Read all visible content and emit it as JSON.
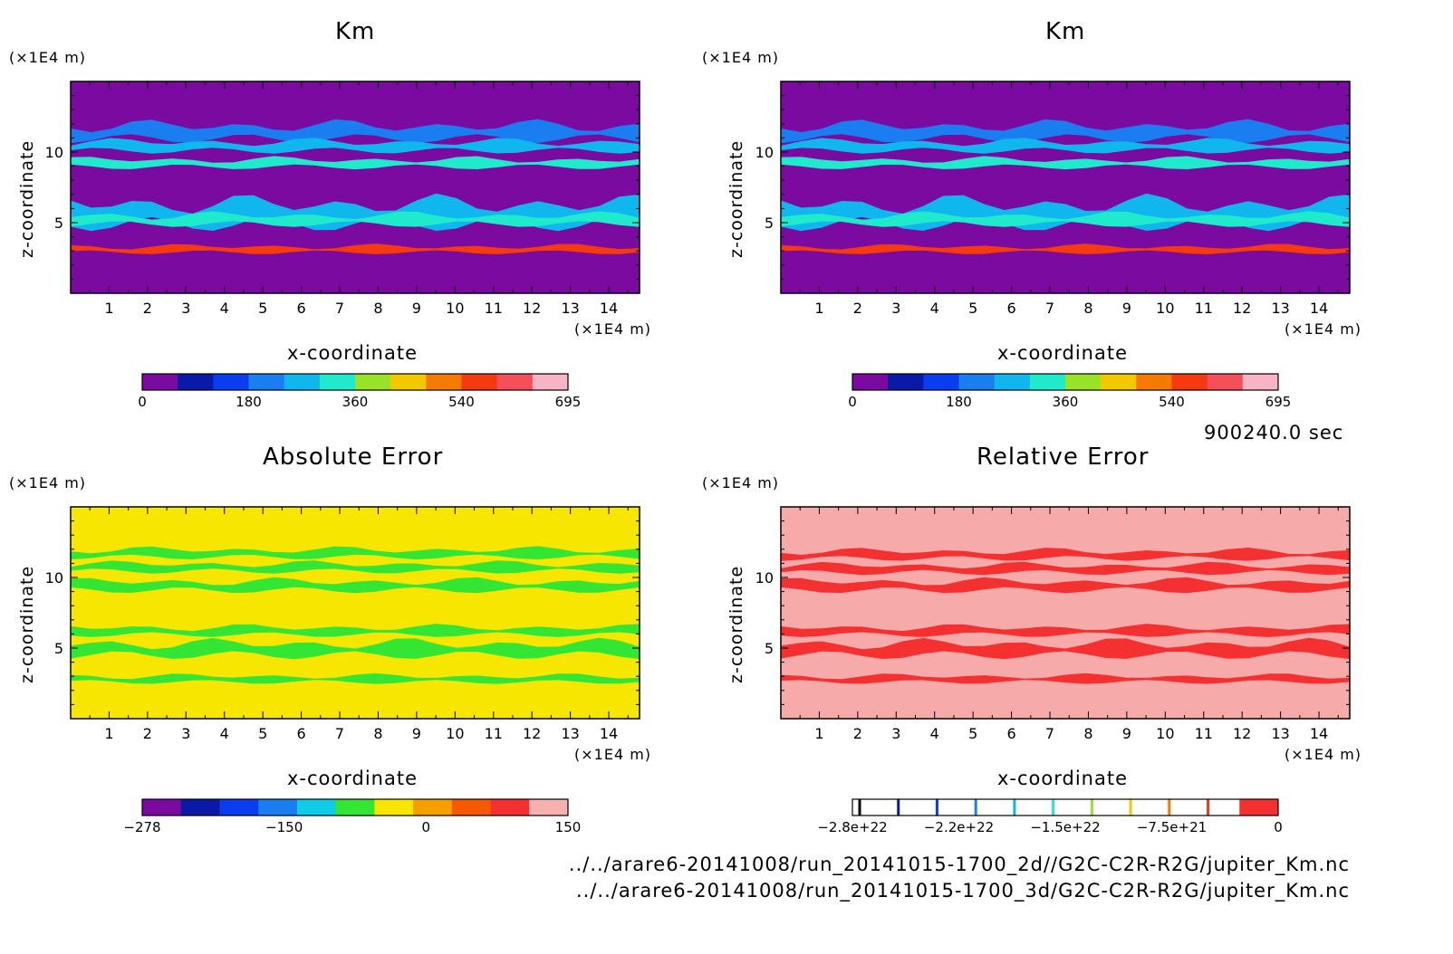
{
  "chart_data": [
    {
      "type": "heatmap",
      "title": "Km",
      "xlabel": "x-coordinate",
      "ylabel": "z-coordinate",
      "x_unit": "(×1E4 m)",
      "y_unit": "(×1E4 m)",
      "x_ticks": [
        1,
        2,
        3,
        4,
        5,
        6,
        7,
        8,
        9,
        10,
        11,
        12,
        13,
        14
      ],
      "y_ticks": [
        5,
        10
      ],
      "xlim": [
        0,
        14.8
      ],
      "ylim": [
        0,
        15
      ],
      "colorbar": {
        "colors": [
          "#7a0aa0",
          "#0a1aa6",
          "#0a3cf0",
          "#1a7ef0",
          "#10b6ee",
          "#20eacc",
          "#9ae228",
          "#f2c800",
          "#f57a00",
          "#f53a10",
          "#f5505a",
          "#f7b4c4"
        ],
        "tick_labels": [
          "0",
          "180",
          "360",
          "540",
          "695"
        ]
      },
      "background": "#7a0aa0",
      "bands": [
        {
          "z": 11.4,
          "thickness": 0.9,
          "color": "#1a7ef0"
        },
        {
          "z": 10.4,
          "thickness": 0.6,
          "color": "#10b6ee"
        },
        {
          "z": 9.2,
          "thickness": 0.5,
          "color": "#20eacc"
        },
        {
          "z": 5.6,
          "thickness": 1.4,
          "color": "#10b6ee"
        },
        {
          "z": 5.2,
          "thickness": 0.6,
          "color": "#20eacc"
        },
        {
          "z": 3.1,
          "thickness": 0.4,
          "color": "#f53a10"
        }
      ]
    },
    {
      "type": "heatmap",
      "title": "Km",
      "xlabel": "x-coordinate",
      "ylabel": "z-coordinate",
      "x_unit": "(×1E4 m)",
      "y_unit": "(×1E4 m)",
      "x_ticks": [
        1,
        2,
        3,
        4,
        5,
        6,
        7,
        8,
        9,
        10,
        11,
        12,
        13,
        14
      ],
      "y_ticks": [
        5,
        10
      ],
      "xlim": [
        0,
        14.8
      ],
      "ylim": [
        0,
        15
      ],
      "colorbar": {
        "colors": [
          "#7a0aa0",
          "#0a1aa6",
          "#0a3cf0",
          "#1a7ef0",
          "#10b6ee",
          "#20eacc",
          "#9ae228",
          "#f2c800",
          "#f57a00",
          "#f53a10",
          "#f5505a",
          "#f7b4c4"
        ],
        "tick_labels": [
          "0",
          "180",
          "360",
          "540",
          "695"
        ]
      },
      "background": "#7a0aa0",
      "bands": [
        {
          "z": 11.4,
          "thickness": 0.9,
          "color": "#1a7ef0"
        },
        {
          "z": 10.4,
          "thickness": 0.6,
          "color": "#10b6ee"
        },
        {
          "z": 9.2,
          "thickness": 0.5,
          "color": "#20eacc"
        },
        {
          "z": 5.6,
          "thickness": 1.4,
          "color": "#10b6ee"
        },
        {
          "z": 5.2,
          "thickness": 0.6,
          "color": "#20eacc"
        },
        {
          "z": 3.1,
          "thickness": 0.4,
          "color": "#f53a10"
        }
      ]
    },
    {
      "type": "heatmap",
      "title": "Absolute Error",
      "xlabel": "x-coordinate",
      "ylabel": "z-coordinate",
      "x_unit": "(×1E4 m)",
      "y_unit": "(×1E4 m)",
      "x_ticks": [
        1,
        2,
        3,
        4,
        5,
        6,
        7,
        8,
        9,
        10,
        11,
        12,
        13,
        14
      ],
      "y_ticks": [
        5,
        10
      ],
      "xlim": [
        0,
        14.8
      ],
      "ylim": [
        0,
        15
      ],
      "colorbar": {
        "colors": [
          "#7a0aa0",
          "#0a1aa6",
          "#0a3cf0",
          "#1a7ef0",
          "#10cce8",
          "#33e633",
          "#f7e600",
          "#f5a000",
          "#f55a00",
          "#f53030",
          "#f7b0b0"
        ],
        "tick_labels": [
          "−278",
          "−150",
          "0",
          "150"
        ]
      },
      "background": "#f7e600",
      "bands": [
        {
          "z": 11.7,
          "thickness": 0.5,
          "color": "#33e633"
        },
        {
          "z": 10.7,
          "thickness": 0.5,
          "color": "#33e633"
        },
        {
          "z": 9.4,
          "thickness": 0.6,
          "color": "#33e633"
        },
        {
          "z": 6.2,
          "thickness": 0.5,
          "color": "#33e633"
        },
        {
          "z": 4.9,
          "thickness": 0.8,
          "color": "#33e633"
        },
        {
          "z": 2.8,
          "thickness": 0.4,
          "color": "#33e633"
        }
      ]
    },
    {
      "type": "heatmap",
      "title": "Relative Error",
      "xlabel": "x-coordinate",
      "ylabel": "z-coordinate",
      "x_unit": "(×1E4 m)",
      "y_unit": "(×1E4 m)",
      "x_ticks": [
        1,
        2,
        3,
        4,
        5,
        6,
        7,
        8,
        9,
        10,
        11,
        12,
        13,
        14
      ],
      "y_ticks": [
        5,
        10
      ],
      "xlim": [
        0,
        14.8
      ],
      "ylim": [
        0,
        15
      ],
      "colorbar": {
        "colors": [
          "#ffffff",
          "#ffffff",
          "#ffffff",
          "#ffffff",
          "#ffffff",
          "#ffffff",
          "#ffffff",
          "#ffffff",
          "#ffffff",
          "#ffffff",
          "#f53030"
        ],
        "lines": [
          "#000000",
          "#0a1aa6",
          "#0a3cf0",
          "#1a7ef0",
          "#10b6ee",
          "#20eacc",
          "#9ae228",
          "#f2c800",
          "#f57a00",
          "#f53a10"
        ],
        "tick_labels": [
          "−2.8e+22",
          "−2.2e+22",
          "−1.5e+22",
          "−7.5e+21",
          "0"
        ]
      },
      "background": "#f7aaaa",
      "bands": [
        {
          "z": 11.6,
          "thickness": 0.5,
          "color": "#f53030"
        },
        {
          "z": 10.6,
          "thickness": 0.5,
          "color": "#f53030"
        },
        {
          "z": 9.4,
          "thickness": 0.6,
          "color": "#f53030"
        },
        {
          "z": 6.2,
          "thickness": 0.5,
          "color": "#f53030"
        },
        {
          "z": 4.9,
          "thickness": 0.8,
          "color": "#f53030"
        },
        {
          "z": 2.8,
          "thickness": 0.4,
          "color": "#f53030"
        }
      ]
    }
  ],
  "time_label": "900240.0 sec",
  "files": [
    "../../arare6-20141008/run_20141015-1700_2d//G2C-C2R-R2G/jupiter_Km.nc",
    "../../arare6-20141008/run_20141015-1700_3d/G2C-C2R-R2G/jupiter_Km.nc"
  ]
}
